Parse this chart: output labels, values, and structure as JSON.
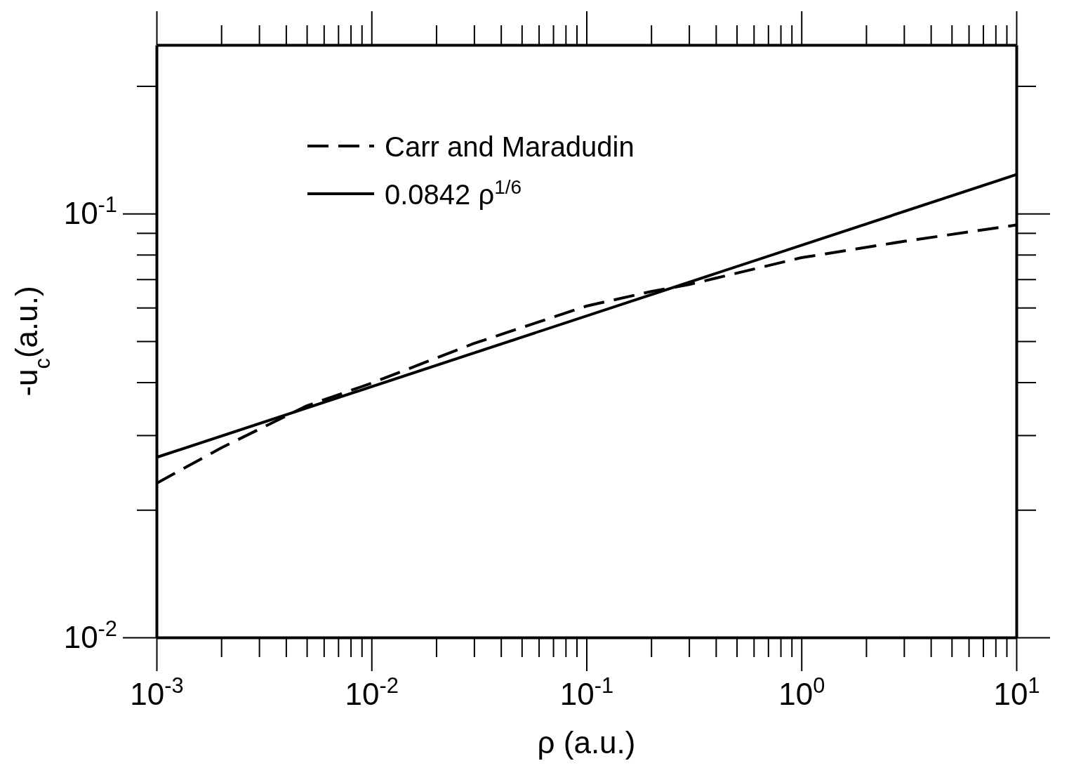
{
  "chart_data": {
    "type": "line",
    "xlabel": "ρ (a.u.)",
    "ylabel": "-u$_{c}$(a.u.)",
    "log": "xy",
    "xlim": [
      0.001,
      10
    ],
    "ylim": [
      0.01,
      0.25
    ],
    "xticks": [
      {
        "value": 0.001,
        "label": "10$^{-3}$"
      },
      {
        "value": 0.01,
        "label": "10$^{-2}$"
      },
      {
        "value": 0.1,
        "label": "10$^{-1}$"
      },
      {
        "value": 1,
        "label": "10$^{0}$"
      },
      {
        "value": 10,
        "label": "10$^{1}$"
      }
    ],
    "yticks": [
      {
        "value": 0.01,
        "label": "10$^{-2}$"
      },
      {
        "value": 0.1,
        "label": "10$^{-1}$"
      }
    ],
    "legend": "top left",
    "grid": false,
    "marker": "none",
    "series": [
      {
        "name": "Carr and Maradudin",
        "color": "#000000",
        "line_style": "dashed",
        "x": [
          0.001,
          0.002,
          0.005,
          0.01,
          0.03,
          0.1,
          0.2,
          0.3,
          1,
          3,
          10
        ],
        "values": [
          0.0231,
          0.028,
          0.0352,
          0.0398,
          0.0494,
          0.0605,
          0.0655,
          0.068,
          0.0787,
          0.086,
          0.094
        ]
      },
      {
        "name": "0.0842 ρ$^{1/6}$",
        "color": "#000000",
        "line_style": "solid",
        "x": [
          0.001,
          10
        ],
        "values": [
          0.0266,
          0.1236
        ]
      }
    ]
  }
}
